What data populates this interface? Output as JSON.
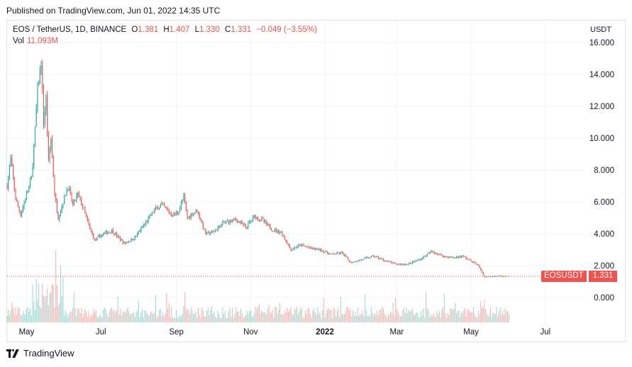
{
  "header": {
    "published": "Published on TradingView.com, Jun 01, 2022 14:35 UTC"
  },
  "legend": {
    "symbol": "EOS / TetherUS, 1D, BINANCE",
    "o_label": "O",
    "o_value": "1.381",
    "h_label": "H",
    "h_value": "1.407",
    "l_label": "L",
    "l_value": "1.330",
    "c_label": "C",
    "c_value": "1.331",
    "change": "−0.049 (−3.55%)",
    "vol_label": "Vol",
    "vol_value": "11.093M"
  },
  "axis": {
    "currency": "USDT"
  },
  "price_tag": {
    "symbol": "EOSUSDT",
    "price": "1.331"
  },
  "footer": {
    "brand": "TradingView"
  },
  "colors": {
    "up": "#26a69a",
    "down": "#ef5350",
    "grid": "#f0f3fa"
  },
  "chart_data": {
    "type": "candlestick",
    "y_ticks": [
      "16.000",
      "14.000",
      "12.000",
      "10.000",
      "8.000",
      "6.000",
      "4.000",
      "2.000",
      "0.000"
    ],
    "y_tick_values": [
      16,
      14,
      12,
      10,
      8,
      6,
      4,
      2,
      0
    ],
    "ylim": [
      0,
      16
    ],
    "x_ticks": [
      "May",
      "Jul",
      "Sep",
      "Nov",
      "2022",
      "Mar",
      "May",
      "Jul"
    ],
    "x_tick_dates": [
      "2021-05-01",
      "2021-07-01",
      "2021-09-01",
      "2021-11-01",
      "2022-01-01",
      "2022-03-01",
      "2022-05-01",
      "2022-07-01"
    ],
    "x_range": [
      "2021-04-15",
      "2022-07-25"
    ],
    "last_price": 1.331,
    "price_path": [
      [
        "2021-04-15",
        7.0
      ],
      [
        "2021-04-18",
        8.7
      ],
      [
        "2021-04-22",
        6.2
      ],
      [
        "2021-04-26",
        5.2
      ],
      [
        "2021-04-30",
        6.2
      ],
      [
        "2021-05-05",
        7.5
      ],
      [
        "2021-05-08",
        10.5
      ],
      [
        "2021-05-10",
        13.0
      ],
      [
        "2021-05-13",
        14.8
      ],
      [
        "2021-05-15",
        11.0
      ],
      [
        "2021-05-17",
        12.5
      ],
      [
        "2021-05-19",
        8.5
      ],
      [
        "2021-05-21",
        10.0
      ],
      [
        "2021-05-24",
        6.5
      ],
      [
        "2021-05-27",
        5.0
      ],
      [
        "2021-05-31",
        6.0
      ],
      [
        "2021-06-04",
        7.0
      ],
      [
        "2021-06-08",
        5.8
      ],
      [
        "2021-06-12",
        6.5
      ],
      [
        "2021-06-17",
        5.5
      ],
      [
        "2021-06-22",
        4.3
      ],
      [
        "2021-06-26",
        3.6
      ],
      [
        "2021-07-03",
        4.0
      ],
      [
        "2021-07-10",
        4.2
      ],
      [
        "2021-07-20",
        3.4
      ],
      [
        "2021-07-28",
        3.7
      ],
      [
        "2021-08-06",
        4.6
      ],
      [
        "2021-08-14",
        5.5
      ],
      [
        "2021-08-20",
        5.8
      ],
      [
        "2021-08-28",
        5.2
      ],
      [
        "2021-09-02",
        5.3
      ],
      [
        "2021-09-07",
        6.3
      ],
      [
        "2021-09-10",
        5.0
      ],
      [
        "2021-09-18",
        5.5
      ],
      [
        "2021-09-25",
        4.0
      ],
      [
        "2021-10-01",
        4.1
      ],
      [
        "2021-10-10",
        4.7
      ],
      [
        "2021-10-20",
        4.9
      ],
      [
        "2021-10-28",
        4.4
      ],
      [
        "2021-11-04",
        5.1
      ],
      [
        "2021-11-10",
        4.9
      ],
      [
        "2021-11-18",
        4.3
      ],
      [
        "2021-11-26",
        4.1
      ],
      [
        "2021-12-04",
        3.0
      ],
      [
        "2021-12-12",
        3.3
      ],
      [
        "2021-12-20",
        3.1
      ],
      [
        "2021-12-28",
        3.0
      ],
      [
        "2022-01-06",
        2.7
      ],
      [
        "2022-01-15",
        2.8
      ],
      [
        "2022-01-22",
        2.2
      ],
      [
        "2022-02-01",
        2.4
      ],
      [
        "2022-02-10",
        2.6
      ],
      [
        "2022-02-20",
        2.3
      ],
      [
        "2022-02-28",
        2.1
      ],
      [
        "2022-03-10",
        2.1
      ],
      [
        "2022-03-20",
        2.4
      ],
      [
        "2022-03-30",
        2.9
      ],
      [
        "2022-04-08",
        2.6
      ],
      [
        "2022-04-16",
        2.5
      ],
      [
        "2022-04-24",
        2.6
      ],
      [
        "2022-05-01",
        2.3
      ],
      [
        "2022-05-07",
        2.0
      ],
      [
        "2022-05-12",
        1.3
      ],
      [
        "2022-05-20",
        1.35
      ],
      [
        "2022-05-28",
        1.33
      ],
      [
        "2022-06-01",
        1.331
      ]
    ]
  }
}
